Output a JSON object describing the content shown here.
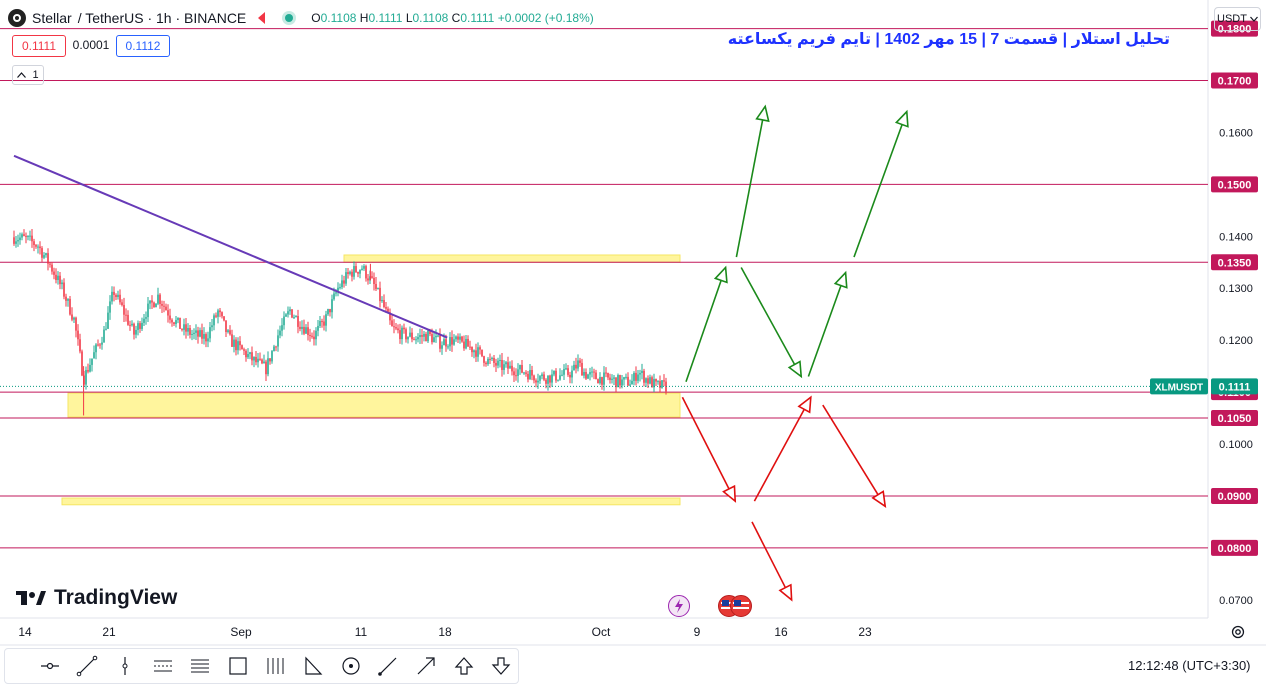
{
  "header": {
    "symbol": "Stellar",
    "pair": "/ TetherUS · 1h · BINANCE",
    "o_label": "O",
    "o": "0.1108",
    "h_label": "H",
    "h": "0.1111",
    "l_label": "L",
    "l": "0.1108",
    "c_label": "C",
    "c": "0.1111",
    "change": "+0.0002 (+0.18%)"
  },
  "prices": {
    "sell": "0.1111",
    "spread": "0.0001",
    "buy": "0.1112"
  },
  "collapse_count": "1",
  "annotation_title": "تحلیل استلار | قسمت 7 | 15 مهر 1402 | تایم فریم یکساعته",
  "currency": "USDT",
  "brand": "TradingView",
  "clock": "12:12:48",
  "timezone": "(UTC+3:30)",
  "icons": [
    "stellar-logo-icon",
    "flag-icon",
    "live-dot-icon",
    "chevron-down-icon",
    "event-lightning-icon",
    "us-flag-icon",
    "gear-icon",
    "tradingview-logo-icon",
    "cursor-icon",
    "trendline-icon",
    "vertical-line-icon",
    "parallel-channel-icon",
    "fib-icon",
    "rectangle-icon",
    "pitchfork-icon",
    "pattern-icon",
    "circle-icon",
    "brush-icon",
    "arrow-icon",
    "arrow-up-icon",
    "arrow-down-icon"
  ],
  "colors": {
    "bull": "#22ab94",
    "bear": "#f23645",
    "level": "#c2185b",
    "trend": "#673ab7",
    "zone": "#fff59d",
    "up_arrow": "#1b8a1b",
    "down_arrow": "#e01010",
    "last_price": "#089981",
    "title": "#1e32ff"
  },
  "chart_data": {
    "type": "candlestick",
    "symbol": "XLMUSDT",
    "interval": "1h",
    "last_price": 0.1111,
    "y_ticks": [
      0.07,
      0.08,
      0.09,
      0.1,
      0.11,
      0.12,
      0.13,
      0.14,
      0.15,
      0.16,
      0.17,
      0.18
    ],
    "y_tick_labels": [
      "0.0700",
      "0.0800",
      "0.0900",
      "0.1000",
      "0.1100",
      "0.1200",
      "0.1300",
      "0.1400",
      "0.1500",
      "0.1600",
      "0.1700",
      "0.1800"
    ],
    "ylim": [
      0.0665,
      0.1855
    ],
    "x_ticks": [
      {
        "label": "14",
        "day": 0
      },
      {
        "label": "21",
        "day": 7
      },
      {
        "label": "Sep",
        "day": 18
      },
      {
        "label": "11",
        "day": 28
      },
      {
        "label": "18",
        "day": 35
      },
      {
        "label": "Oct",
        "day": 48
      },
      {
        "label": "9",
        "day": 56
      },
      {
        "label": "16",
        "day": 63
      },
      {
        "label": "23",
        "day": 70
      }
    ],
    "levels": [
      {
        "price": 0.18,
        "label": "0.1800"
      },
      {
        "price": 0.17,
        "label": "0.1700"
      },
      {
        "price": 0.15,
        "label": "0.1500"
      },
      {
        "price": 0.135,
        "label": "0.1350"
      },
      {
        "price": 0.11,
        "label": "0.1100"
      },
      {
        "price": 0.105,
        "label": "0.1050"
      },
      {
        "price": 0.09,
        "label": "0.0900"
      },
      {
        "price": 0.08,
        "label": "0.0800"
      }
    ],
    "last_price_label": {
      "name": "XLMUSDT",
      "value": "0.1111"
    },
    "zones": [
      {
        "from_day": 27.5,
        "to_day": 55.5,
        "low": 0.135,
        "high": 0.1364
      },
      {
        "from_day": 4.5,
        "to_day": 55.5,
        "low": 0.1052,
        "high": 0.1098
      },
      {
        "from_day": 4.0,
        "to_day": 55.5,
        "low": 0.0883,
        "high": 0.0896
      }
    ],
    "trendline": {
      "from": [
        0,
        0.1555
      ],
      "to": [
        36.1,
        0.1205
      ]
    },
    "price_path": [
      [
        0,
        0.1398
      ],
      [
        1,
        0.1395
      ],
      [
        2,
        0.1382
      ],
      [
        3,
        0.1345
      ],
      [
        4,
        0.13
      ],
      [
        5,
        0.124
      ],
      [
        5.8,
        0.1125
      ],
      [
        6.5,
        0.1165
      ],
      [
        7.5,
        0.1215
      ],
      [
        8.3,
        0.1295
      ],
      [
        9,
        0.1262
      ],
      [
        10,
        0.1212
      ],
      [
        11,
        0.1255
      ],
      [
        12,
        0.1285
      ],
      [
        13,
        0.1248
      ],
      [
        14,
        0.1222
      ],
      [
        15,
        0.121
      ],
      [
        16,
        0.1205
      ],
      [
        17,
        0.1255
      ],
      [
        18,
        0.12
      ],
      [
        19,
        0.118
      ],
      [
        20,
        0.116
      ],
      [
        21,
        0.1145
      ],
      [
        22,
        0.121
      ],
      [
        23,
        0.1258
      ],
      [
        24,
        0.1228
      ],
      [
        25,
        0.1208
      ],
      [
        26,
        0.1242
      ],
      [
        27,
        0.13
      ],
      [
        28,
        0.133
      ],
      [
        29,
        0.134
      ],
      [
        30,
        0.1305
      ],
      [
        30.8,
        0.1265
      ],
      [
        31.5,
        0.1222
      ],
      [
        32.5,
        0.121
      ],
      [
        33.5,
        0.1205
      ],
      [
        34.5,
        0.121
      ],
      [
        35.5,
        0.1195
      ],
      [
        36.5,
        0.12
      ],
      [
        37.5,
        0.1192
      ],
      [
        38.5,
        0.118
      ],
      [
        39.5,
        0.116
      ],
      [
        40.5,
        0.115
      ],
      [
        41.5,
        0.1145
      ],
      [
        42.5,
        0.114
      ],
      [
        43.5,
        0.113
      ],
      [
        44.5,
        0.1128
      ],
      [
        45.5,
        0.1132
      ],
      [
        46.5,
        0.1138
      ],
      [
        47,
        0.1155
      ],
      [
        47.6,
        0.1135
      ],
      [
        48.5,
        0.1128
      ],
      [
        49.5,
        0.1125
      ],
      [
        50.5,
        0.112
      ],
      [
        51.5,
        0.112
      ],
      [
        52,
        0.114
      ],
      [
        52.7,
        0.1125
      ],
      [
        53.5,
        0.1112
      ],
      [
        54.4,
        0.1111
      ]
    ],
    "scenario_arrows_up": [
      {
        "from": [
          56,
          0.112
        ],
        "to": [
          59.3,
          0.134
        ]
      },
      {
        "from": [
          60.2,
          0.136
        ],
        "to": [
          62.6,
          0.165
        ]
      },
      {
        "from": [
          60.6,
          0.134
        ],
        "to": [
          65.6,
          0.113
        ]
      },
      {
        "from": [
          66.2,
          0.113
        ],
        "to": [
          69.3,
          0.133
        ]
      },
      {
        "from": [
          70,
          0.136
        ],
        "to": [
          74.4,
          0.164
        ]
      }
    ],
    "scenario_arrows_down": [
      {
        "from": [
          55.7,
          0.109
        ],
        "to": [
          60.1,
          0.089
        ]
      },
      {
        "from": [
          61.7,
          0.089
        ],
        "to": [
          66.4,
          0.109
        ]
      },
      {
        "from": [
          67.4,
          0.1075
        ],
        "to": [
          72.6,
          0.088
        ]
      },
      {
        "from": [
          61.5,
          0.085
        ],
        "to": [
          64.8,
          0.07
        ]
      }
    ]
  }
}
